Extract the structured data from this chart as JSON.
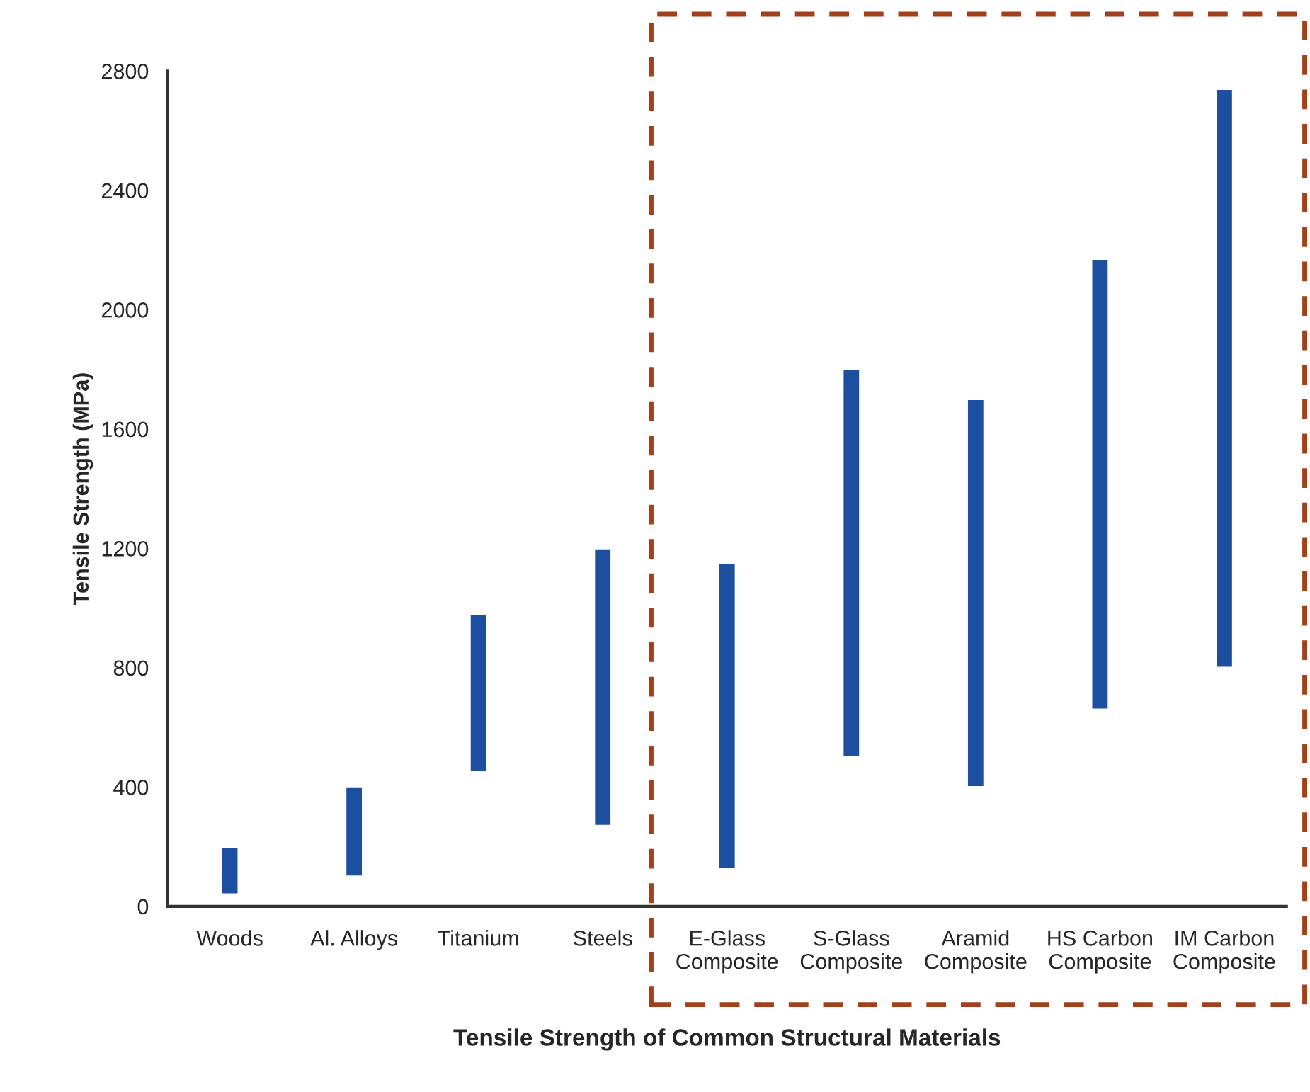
{
  "chart_data": {
    "type": "bar",
    "xlabel": "Tensile Strength of Common Structural Materials",
    "ylabel": "Tensile Strength (MPa)",
    "categories": [
      "Woods",
      "Al. Alloys",
      "Titanium",
      "Steels",
      "E-Glass\nComposite",
      "S-Glass\nComposite",
      "Aramid\nComposite",
      "HS Carbon\nComposite",
      "IM Carbon\nComposite"
    ],
    "base": [
      40,
      100,
      450,
      270,
      125,
      500,
      400,
      660,
      800
    ],
    "values": [
      160,
      300,
      530,
      930,
      1025,
      1300,
      1300,
      1510,
      1940
    ],
    "color": "#1d4fa1",
    "ylim": [
      0,
      2800
    ],
    "yticks": [
      0,
      400,
      800,
      1200,
      1600,
      2000,
      2400,
      2800
    ],
    "grid": false,
    "legend": false
  }
}
